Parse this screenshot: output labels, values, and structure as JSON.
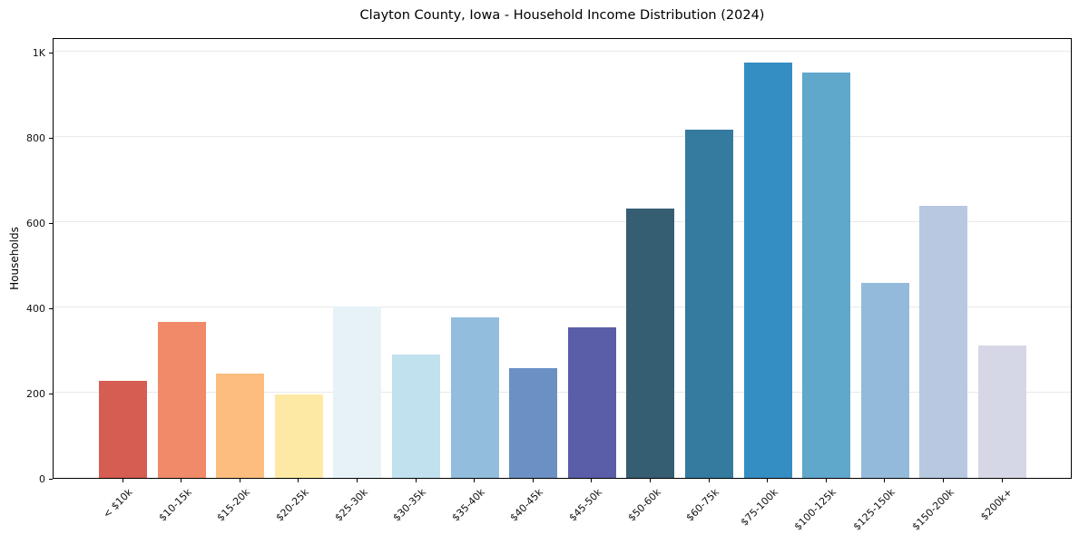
{
  "figure": {
    "title": "Clayton County, Iowa - Household Income Distribution (2024)"
  },
  "chart_data": {
    "type": "bar",
    "title": "Clayton County, Iowa - Household Income Distribution (2024)",
    "xlabel": "",
    "ylabel": "Households",
    "categories": [
      "< $10k",
      "$10-15k",
      "$15-20k",
      "$20-25k",
      "$25-30k",
      "$30-35k",
      "$35-40k",
      "$40-45k",
      "$45-50k",
      "$50-60k",
      "$60-75k",
      "$75-100k",
      "$100-125k",
      "$125-150k",
      "$150-200k",
      "$200k+"
    ],
    "values": [
      228,
      366,
      246,
      196,
      402,
      289,
      378,
      257,
      354,
      633,
      817,
      975,
      951,
      458,
      640,
      312
    ],
    "bar_colors": [
      "#d65d52",
      "#f08a68",
      "#fcbd7e",
      "#fde9a3",
      "#e7f2f7",
      "#c0e1ed",
      "#93bddc",
      "#6b90c4",
      "#5a5ea9",
      "#355e73",
      "#347b9f",
      "#348dc3",
      "#5fa7cb",
      "#93badb",
      "#b7c8e0",
      "#d6d7e6"
    ],
    "yticks": [
      {
        "value": 0,
        "label": "0"
      },
      {
        "value": 200,
        "label": "200"
      },
      {
        "value": 400,
        "label": "400"
      },
      {
        "value": 600,
        "label": "600"
      },
      {
        "value": 800,
        "label": "800"
      },
      {
        "value": 1000,
        "label": "1K"
      }
    ],
    "ylim": [
      0,
      1035
    ],
    "grid": "horizontal",
    "legend": "none"
  }
}
